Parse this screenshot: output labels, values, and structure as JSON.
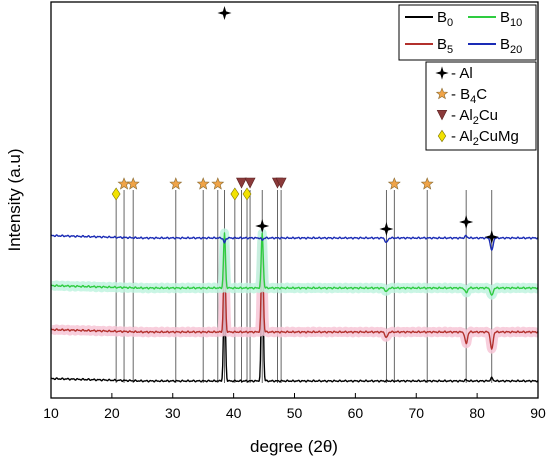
{
  "chart_data": {
    "type": "line",
    "title": "",
    "xlabel": "degree (2θ)",
    "ylabel": "Intensity (a.u)",
    "xlim": [
      10,
      90
    ],
    "xticks": [
      10,
      20,
      30,
      40,
      50,
      60,
      70,
      80,
      90
    ],
    "y_ticks_shown": false,
    "grid": false,
    "legend_series_position": "top-right",
    "legend_phases_position": "right, below series legend",
    "series": [
      {
        "name": "B0",
        "name_base": "B",
        "name_sub": "0",
        "color": "#000000",
        "baseline": 381,
        "halo": null,
        "peaks": [
          [
            38.5,
            282
          ],
          [
            44.7,
            251
          ],
          [
            65.1,
            381
          ],
          [
            78.2,
            380
          ],
          [
            82.4,
            378
          ]
        ]
      },
      {
        "name": "B5",
        "name_base": "B",
        "name_sub": "5",
        "color": "#b2302c",
        "baseline": 332,
        "halo": "#f7c6d6",
        "peaks": [
          [
            38.5,
            247
          ],
          [
            44.7,
            240
          ],
          [
            65.1,
            338
          ],
          [
            78.2,
            344
          ],
          [
            82.4,
            350
          ]
        ]
      },
      {
        "name": "B10",
        "name_base": "B",
        "name_sub": "10",
        "color": "#2ecc40",
        "baseline": 288,
        "halo": "#bff3df",
        "peaks": [
          [
            38.5,
            233
          ],
          [
            44.7,
            233
          ],
          [
            65.1,
            292
          ],
          [
            78.2,
            293
          ],
          [
            82.4,
            296
          ]
        ]
      },
      {
        "name": "B20",
        "name_base": "B",
        "name_sub": "20",
        "color": "#1a2bb5",
        "baseline": 238,
        "halo": null,
        "peaks": [
          [
            35.0,
            238
          ],
          [
            38.5,
            243
          ],
          [
            44.7,
            240
          ],
          [
            65.1,
            243
          ],
          [
            78.2,
            236
          ],
          [
            82.4,
            251
          ]
        ]
      }
    ],
    "phases": [
      {
        "label_prefix": "- Al",
        "label_sub": "",
        "label_suffix": "",
        "marker": "cross",
        "color": "#000000"
      },
      {
        "label_prefix": "- B",
        "label_sub": "4",
        "label_suffix": "C",
        "marker": "star",
        "color": "#f0a448"
      },
      {
        "label_prefix": "- Al",
        "label_sub": "2",
        "label_suffix": "Cu",
        "marker": "triangle-down",
        "color": "#8b3a3a"
      },
      {
        "label_prefix": "- Al",
        "label_sub": "2",
        "label_suffix": "CuMg",
        "marker": "diamond",
        "color": "#f2e200"
      }
    ],
    "markers": [
      {
        "x": 20.7,
        "phase": "diamond"
      },
      {
        "x": 22.0,
        "phase": "star"
      },
      {
        "x": 23.5,
        "phase": "star"
      },
      {
        "x": 30.5,
        "phase": "star"
      },
      {
        "x": 35.0,
        "phase": "star"
      },
      {
        "x": 37.4,
        "phase": "star"
      },
      {
        "x": 38.5,
        "phase": "cross"
      },
      {
        "x": 40.2,
        "phase": "diamond"
      },
      {
        "x": 41.3,
        "phase": "triangle-down"
      },
      {
        "x": 42.2,
        "phase": "diamond"
      },
      {
        "x": 42.7,
        "phase": "triangle-down"
      },
      {
        "x": 44.7,
        "phase": "cross"
      },
      {
        "x": 47.2,
        "phase": "triangle-down"
      },
      {
        "x": 47.8,
        "phase": "triangle-down"
      },
      {
        "x": 65.1,
        "phase": "cross"
      },
      {
        "x": 66.4,
        "phase": "star"
      },
      {
        "x": 71.8,
        "phase": "star"
      },
      {
        "x": 78.2,
        "phase": "cross"
      },
      {
        "x": 82.4,
        "phase": "cross"
      }
    ]
  }
}
